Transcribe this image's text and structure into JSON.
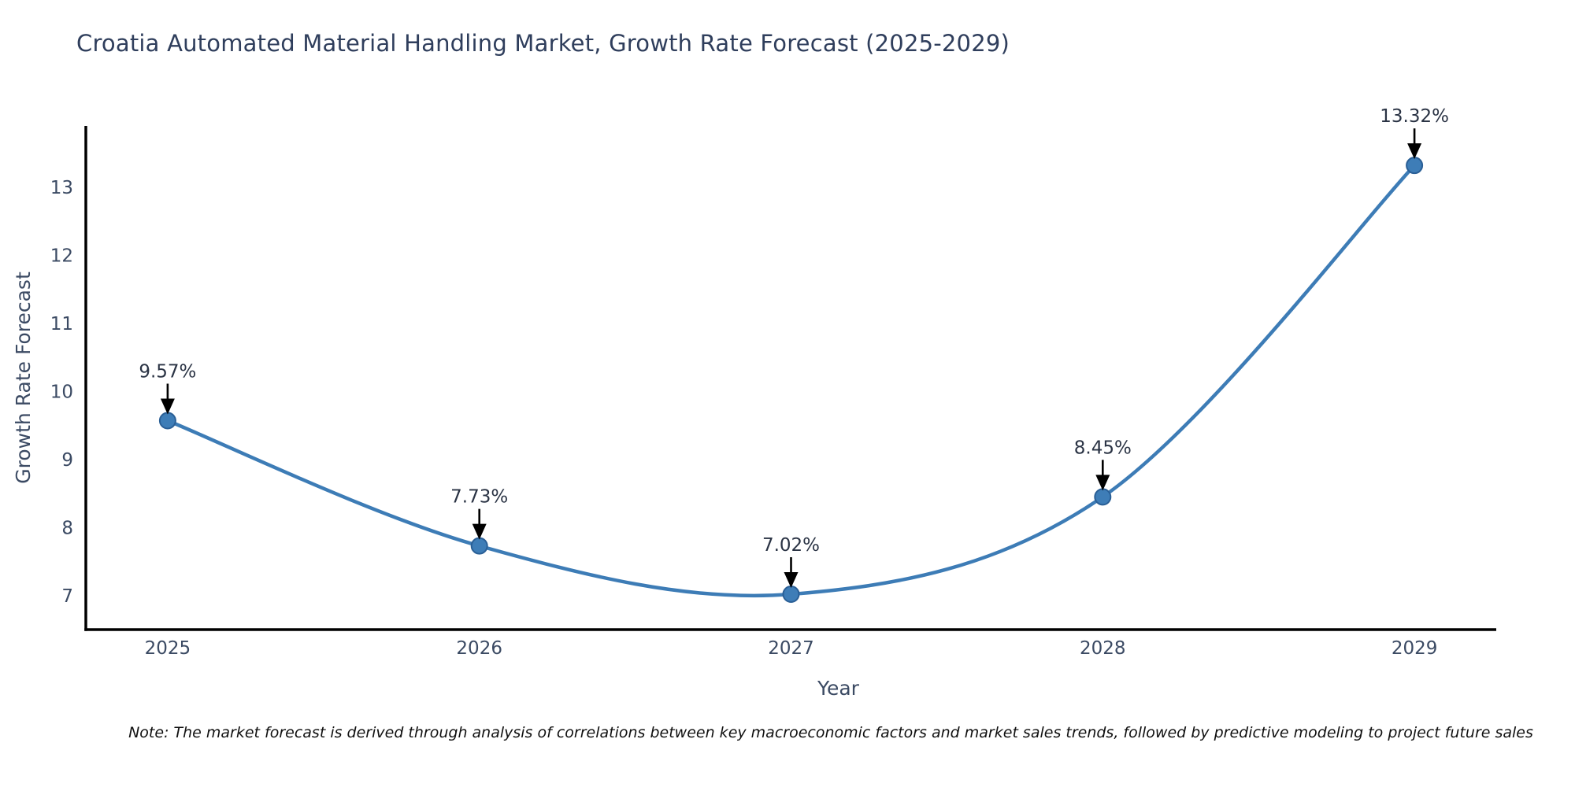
{
  "title": "Croatia Automated Material Handling Market, Growth Rate Forecast (2025-2029)",
  "note": "Note: The market forecast is derived through analysis of correlations between key macroeconomic factors and market sales trends, followed by predictive modeling to project future sales",
  "chart_data": {
    "type": "line",
    "x": [
      2025,
      2026,
      2027,
      2028,
      2029
    ],
    "x_tick_labels": [
      "2025",
      "2026",
      "2027",
      "2028",
      "2029"
    ],
    "values": [
      9.57,
      7.73,
      7.02,
      8.45,
      13.32
    ],
    "point_labels": [
      "9.57%",
      "7.73%",
      "7.02%",
      "8.45%",
      "13.32%"
    ],
    "title": "Croatia Automated Material Handling Market, Growth Rate Forecast (2025-2029)",
    "xlabel": "Year",
    "ylabel": "Growth Rate Forecast",
    "yticks": [
      7,
      8,
      9,
      10,
      11,
      12,
      13
    ],
    "ylim": [
      6.5,
      13.9
    ],
    "xlim": [
      2024.7375,
      2029.2625
    ],
    "grid": false,
    "legend": false,
    "smooth_spline": true,
    "colors": {
      "line": "#3d7cb6",
      "marker_fill": "#3e7db7",
      "marker_edge": "#2a5f96",
      "annotation_text": "#2a3344",
      "annotation_arrow": "#000000",
      "tick_text": "#3b4a63",
      "axis_title_text": "#3b4a63",
      "title_text": "#2f3e5c",
      "spine": "#000000",
      "note_text": "#101010",
      "background": "#ffffff"
    }
  }
}
